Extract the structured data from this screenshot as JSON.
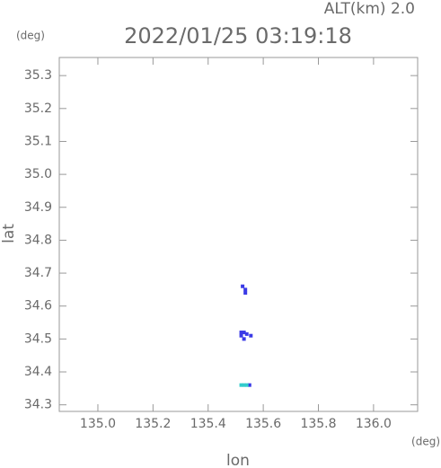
{
  "chart_data": {
    "type": "scatter",
    "title": "2022/01/25 03:19:18",
    "subtitle": "ALT(km) 2.0",
    "y_unit": "(deg)",
    "x_unit": "(deg)",
    "x_label": "lon",
    "y_label": "lat",
    "xlim": [
      134.86,
      136.16
    ],
    "ylim": [
      34.28,
      35.355
    ],
    "xticks": [
      {
        "value": 135.0,
        "label": "135.0"
      },
      135.2,
      135.4,
      135.6,
      135.8,
      {
        "value": 136.0,
        "label": "136.0"
      }
    ],
    "yticks": [
      35.3,
      35.2,
      35.1,
      {
        "value": 35.0,
        "label": "35.0"
      },
      34.9,
      34.8,
      34.7,
      34.6,
      34.5,
      34.4,
      34.3
    ],
    "series": [
      {
        "color": "#3a3ae6",
        "x": [
          135.525,
          135.535,
          135.535,
          135.52,
          135.53,
          135.54,
          135.53,
          135.555,
          135.52,
          135.55
        ],
        "values": [
          34.66,
          34.65,
          34.64,
          34.52,
          34.52,
          34.515,
          34.5,
          34.51,
          34.51,
          34.36
        ]
      },
      {
        "color": "#33cccc",
        "x": [
          135.52,
          135.53,
          135.54
        ],
        "values": [
          34.36,
          34.36,
          34.36
        ]
      }
    ]
  }
}
